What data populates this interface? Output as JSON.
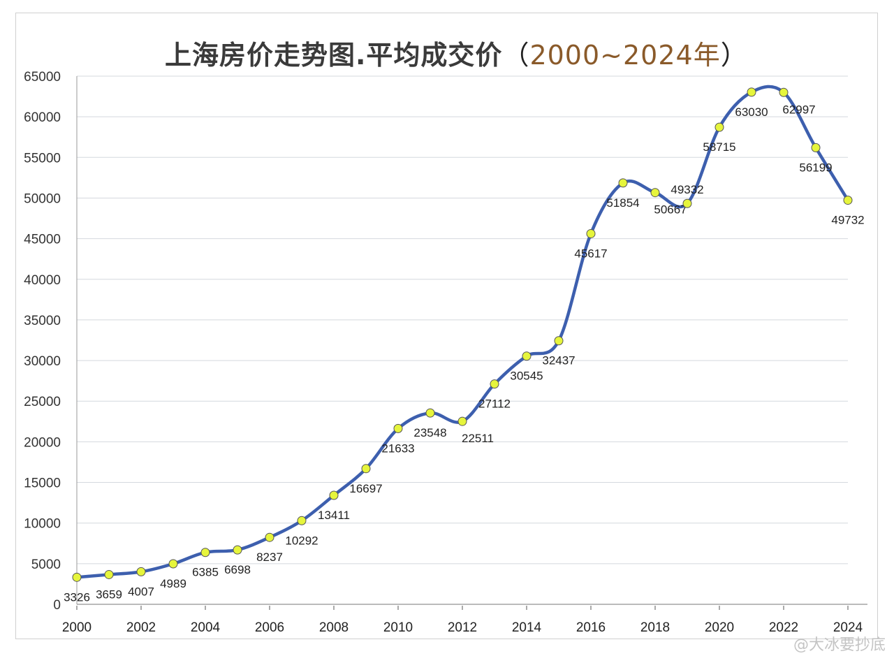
{
  "chart_data": {
    "type": "line",
    "title": "上海房价走势图.平均成交价",
    "subtitle": "2000~2024年",
    "xlabel": "",
    "ylabel": "",
    "x": [
      2000,
      2001,
      2002,
      2003,
      2004,
      2005,
      2006,
      2007,
      2008,
      2009,
      2010,
      2011,
      2012,
      2013,
      2014,
      2015,
      2016,
      2017,
      2018,
      2019,
      2020,
      2021,
      2022,
      2023,
      2024
    ],
    "values": [
      3326,
      3659,
      4007,
      4989,
      6385,
      6698,
      8237,
      10292,
      13411,
      16697,
      21633,
      23548,
      22511,
      27112,
      30545,
      32437,
      45617,
      51854,
      50667,
      49332,
      58715,
      63030,
      62997,
      56199,
      49732
    ],
    "xticks": [
      "2000",
      "2002",
      "2004",
      "2006",
      "2008",
      "2010",
      "2012",
      "2014",
      "2016",
      "2018",
      "2020",
      "2022",
      "2024"
    ],
    "yticks": [
      "0",
      "5000",
      "10000",
      "15000",
      "20000",
      "25000",
      "30000",
      "35000",
      "40000",
      "45000",
      "50000",
      "55000",
      "60000",
      "65000"
    ],
    "ylim": [
      0,
      65000
    ],
    "xlim": [
      2000,
      2024
    ],
    "grid": true,
    "smooth": true,
    "line_color": "#3d5fae",
    "marker_color": "#e6f53c"
  },
  "watermark": "@大冰要抄底"
}
